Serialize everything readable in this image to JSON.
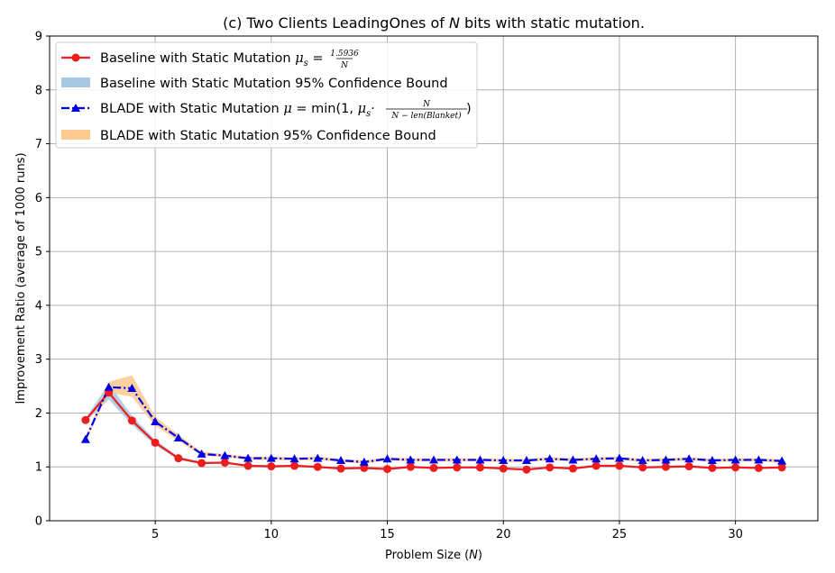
{
  "chart_data": {
    "type": "line",
    "title": "(c) Two Clients LeadingOnes of N bits with static mutation.",
    "title_parts": [
      "(c) Two Clients LeadingOnes of ",
      "N",
      " bits with static mutation."
    ],
    "xlabel": "Problem Size (N)",
    "xlabel_parts": [
      "Problem Size (",
      "N",
      ")"
    ],
    "ylabel": "Improvement Ratio (average of 1000 runs)",
    "xlim": [
      0.45,
      33.55
    ],
    "ylim": [
      0,
      9
    ],
    "xticks": [
      5,
      10,
      15,
      20,
      25,
      30
    ],
    "yticks": [
      0,
      1,
      2,
      3,
      4,
      5,
      6,
      7,
      8,
      9
    ],
    "grid": true,
    "legend_position": "top-left",
    "x": [
      2,
      3,
      4,
      5,
      6,
      7,
      8,
      9,
      10,
      11,
      12,
      13,
      14,
      15,
      16,
      17,
      18,
      19,
      20,
      21,
      22,
      23,
      24,
      25,
      26,
      27,
      28,
      29,
      30,
      31,
      32
    ],
    "series": [
      {
        "name": "Baseline with Static Mutation μs = 1.5936/N",
        "kind": "line",
        "color": "#ee1c1c",
        "marker": "circle",
        "linestyle": "solid",
        "values": [
          1.87,
          2.38,
          1.86,
          1.45,
          1.16,
          1.07,
          1.08,
          1.02,
          1.01,
          1.02,
          1.0,
          0.97,
          0.98,
          0.96,
          1.0,
          0.98,
          0.99,
          0.99,
          0.97,
          0.95,
          0.99,
          0.97,
          1.02,
          1.02,
          0.99,
          1.0,
          1.01,
          0.98,
          0.99,
          0.98,
          0.99
        ]
      },
      {
        "name": "Baseline with Static Mutation 95% Confidence Bound",
        "kind": "band",
        "color": "#a6c8e3",
        "lower": [
          1.84,
          2.25,
          1.78,
          1.4,
          1.13,
          1.05,
          1.06,
          1.0,
          0.99,
          1.0,
          0.98,
          0.95,
          0.96,
          0.94,
          0.98,
          0.96,
          0.97,
          0.97,
          0.95,
          0.93,
          0.97,
          0.95,
          1.0,
          1.0,
          0.97,
          0.98,
          0.99,
          0.96,
          0.97,
          0.96,
          0.97
        ],
        "upper": [
          1.9,
          2.55,
          1.95,
          1.5,
          1.19,
          1.1,
          1.1,
          1.04,
          1.03,
          1.04,
          1.02,
          0.99,
          1.0,
          0.98,
          1.02,
          1.0,
          1.01,
          1.01,
          0.99,
          0.97,
          1.01,
          0.99,
          1.04,
          1.04,
          1.01,
          1.02,
          1.03,
          1.0,
          1.01,
          1.0,
          1.01
        ]
      },
      {
        "name": "BLADE with Static Mutation μ = min(1, μs · N/(N − len(Blanket)))",
        "kind": "line",
        "color": "#0000e6",
        "marker": "triangle",
        "linestyle": "dashdot",
        "values": [
          1.51,
          2.48,
          2.46,
          1.84,
          1.54,
          1.24,
          1.21,
          1.16,
          1.16,
          1.15,
          1.16,
          1.12,
          1.09,
          1.15,
          1.13,
          1.13,
          1.13,
          1.13,
          1.12,
          1.12,
          1.15,
          1.13,
          1.15,
          1.16,
          1.12,
          1.13,
          1.15,
          1.12,
          1.13,
          1.13,
          1.11
        ]
      },
      {
        "name": "BLADE with Static Mutation 95% Confidence Bound",
        "kind": "band",
        "color": "#fdc98e",
        "lower": [
          1.48,
          2.38,
          2.3,
          1.76,
          1.48,
          1.21,
          1.18,
          1.13,
          1.13,
          1.12,
          1.13,
          1.09,
          1.06,
          1.12,
          1.1,
          1.1,
          1.1,
          1.1,
          1.09,
          1.09,
          1.12,
          1.1,
          1.12,
          1.13,
          1.09,
          1.1,
          1.12,
          1.09,
          1.1,
          1.1,
          1.08
        ],
        "upper": [
          1.54,
          2.58,
          2.7,
          1.93,
          1.6,
          1.28,
          1.24,
          1.19,
          1.19,
          1.18,
          1.19,
          1.15,
          1.12,
          1.18,
          1.16,
          1.16,
          1.16,
          1.16,
          1.15,
          1.15,
          1.18,
          1.16,
          1.18,
          1.19,
          1.15,
          1.16,
          1.18,
          1.15,
          1.16,
          1.16,
          1.14
        ]
      }
    ]
  },
  "legend": {
    "items": [
      {
        "parts": [
          "Baseline with Static Mutation ",
          "μ",
          "s",
          " = ",
          "1.5936",
          "N"
        ]
      },
      {
        "parts": [
          "Baseline with Static Mutation 95% Confidence Bound"
        ]
      },
      {
        "parts": [
          "BLADE with Static Mutation ",
          "μ",
          " = min(1, ",
          "μ",
          "s",
          "·",
          "N",
          "N − len(Blanket)",
          ")"
        ]
      },
      {
        "parts": [
          "BLADE with Static Mutation 95% Confidence Bound"
        ]
      }
    ]
  }
}
